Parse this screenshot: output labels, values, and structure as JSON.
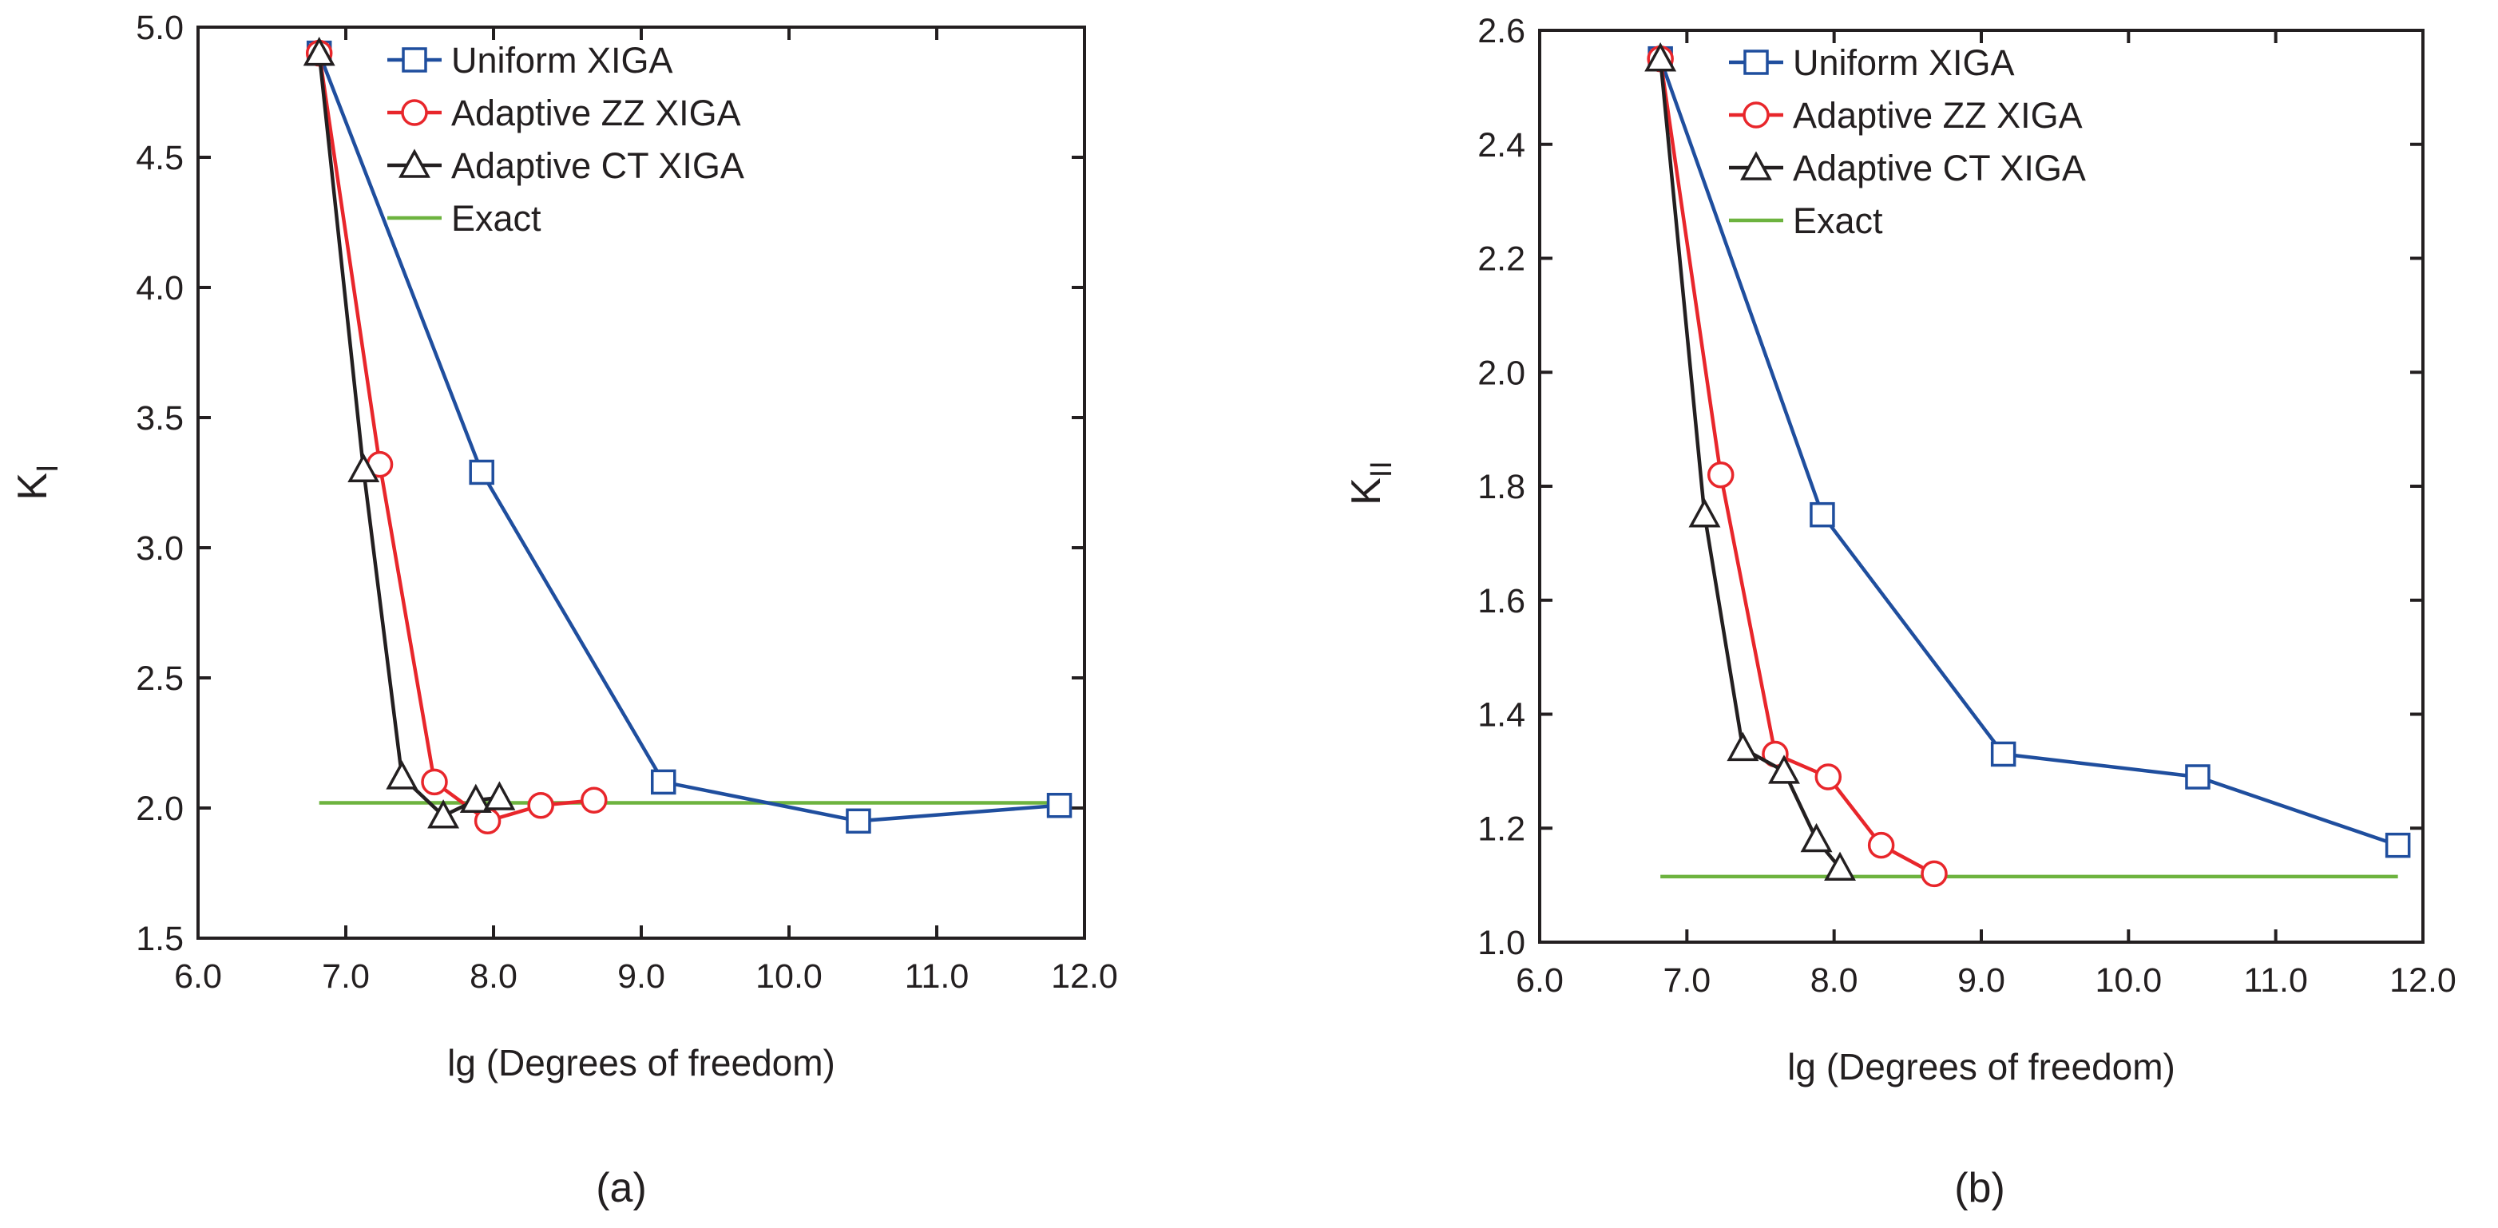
{
  "chart_data": [
    {
      "type": "line",
      "caption": "(a)",
      "ylabel_main": "K",
      "ylabel_sub": "I",
      "xlabel": "lg (Degrees of freedom)",
      "xlim": [
        6.0,
        12.0
      ],
      "ylim": [
        1.5,
        5.0
      ],
      "xticks": [
        "6.0",
        "7.0",
        "8.0",
        "9.0",
        "10.0",
        "11.0",
        "12.0"
      ],
      "yticks": [
        "1.5",
        "2.0",
        "2.5",
        "3.0",
        "3.5",
        "4.0",
        "4.5",
        "5.0"
      ],
      "legend": [
        "Uniform XIGA",
        "Adaptive ZZ XIGA",
        "Adaptive CT XIGA",
        "Exact"
      ],
      "series": [
        {
          "name": "Uniform XIGA",
          "color": "#1f4e9e",
          "marker": "square",
          "x": [
            6.82,
            7.92,
            9.15,
            10.47,
            11.83
          ],
          "y": [
            4.9,
            3.29,
            2.1,
            1.95,
            2.01
          ]
        },
        {
          "name": "Adaptive ZZ XIGA",
          "color": "#e8262b",
          "marker": "circle",
          "x": [
            6.82,
            7.23,
            7.6,
            7.96,
            8.32,
            8.68
          ],
          "y": [
            4.9,
            3.32,
            2.1,
            1.95,
            2.01,
            2.03
          ]
        },
        {
          "name": "Adaptive CT XIGA",
          "color": "#231f20",
          "marker": "triangle",
          "x": [
            6.82,
            7.12,
            7.38,
            7.66,
            7.88,
            8.04
          ],
          "y": [
            4.9,
            3.3,
            2.12,
            1.97,
            2.03,
            2.04
          ]
        },
        {
          "name": "Exact",
          "color": "#6db33f",
          "marker": "none",
          "x": [
            6.82,
            11.83
          ],
          "y": [
            2.02,
            2.02
          ]
        }
      ]
    },
    {
      "type": "line",
      "caption": "(b)",
      "ylabel_main": "K",
      "ylabel_sub": "II",
      "xlabel": "lg (Degrees of freedom)",
      "xlim": [
        6.0,
        12.0
      ],
      "ylim": [
        1.0,
        2.6
      ],
      "xticks": [
        "6.0",
        "7.0",
        "8.0",
        "9.0",
        "10.0",
        "11.0",
        "12.0"
      ],
      "yticks": [
        "1.0",
        "1.2",
        "1.4",
        "1.6",
        "1.8",
        "2.0",
        "2.2",
        "2.4",
        "2.6"
      ],
      "legend": [
        "Uniform XIGA",
        "Adaptive ZZ XIGA",
        "Adaptive CT XIGA",
        "Exact"
      ],
      "series": [
        {
          "name": "Uniform XIGA",
          "color": "#1f4e9e",
          "marker": "square",
          "x": [
            6.82,
            7.92,
            9.15,
            10.47,
            11.83
          ],
          "y": [
            2.55,
            1.75,
            1.33,
            1.29,
            1.17
          ]
        },
        {
          "name": "Adaptive ZZ XIGA",
          "color": "#e8262b",
          "marker": "circle",
          "x": [
            6.82,
            7.23,
            7.6,
            7.96,
            8.32,
            8.68
          ],
          "y": [
            2.55,
            1.82,
            1.33,
            1.29,
            1.17,
            1.12
          ]
        },
        {
          "name": "Adaptive CT XIGA",
          "color": "#231f20",
          "marker": "triangle",
          "x": [
            6.82,
            7.12,
            7.38,
            7.66,
            7.88,
            8.04
          ],
          "y": [
            2.55,
            1.75,
            1.34,
            1.3,
            1.18,
            1.13
          ]
        },
        {
          "name": "Exact",
          "color": "#6db33f",
          "marker": "none",
          "x": [
            6.82,
            11.83
          ],
          "y": [
            1.115,
            1.115
          ]
        }
      ]
    }
  ]
}
